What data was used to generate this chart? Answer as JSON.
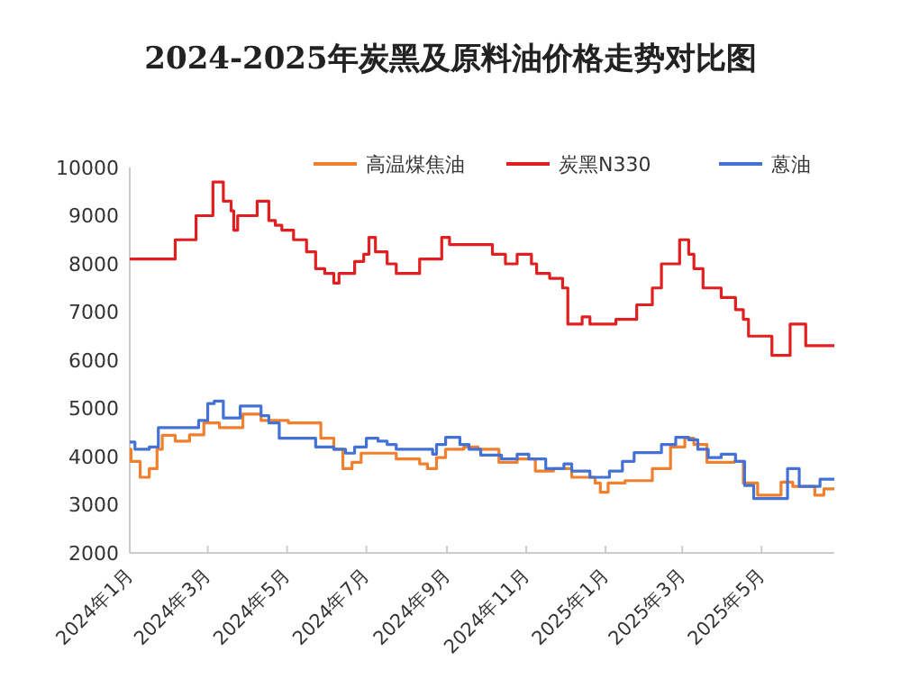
{
  "chart_data": {
    "type": "step",
    "title": "2024-2025年炭黑及原料油价格走势对比图",
    "legend": "top right",
    "xlim": [
      "2024-01-01",
      "2025-06-26"
    ],
    "xticks": [
      {
        "value": "2024-01-01",
        "label": "2024年1月"
      },
      {
        "value": "2024-03-01",
        "label": "2024年3月"
      },
      {
        "value": "2024-05-01",
        "label": "2024年5月"
      },
      {
        "value": "2024-07-01",
        "label": "2024年7月"
      },
      {
        "value": "2024-09-01",
        "label": "2024年9月"
      },
      {
        "value": "2024-11-01",
        "label": "2024年11月"
      },
      {
        "value": "2025-01-01",
        "label": "2025年1月"
      },
      {
        "value": "2025-03-01",
        "label": "2025年3月"
      },
      {
        "value": "2025-05-01",
        "label": "2025年5月"
      }
    ],
    "ylim": [
      2000,
      10000
    ],
    "yticks": [
      2000,
      3000,
      4000,
      5000,
      6000,
      7000,
      8000,
      9000,
      10000
    ],
    "series": [
      {
        "name": "高温煤焦油",
        "color": "#f07f2e",
        "x": [
          "2024-01-01",
          "2024-01-02",
          "2024-01-09",
          "2024-01-16",
          "2024-01-22",
          "2024-01-26",
          "2024-02-05",
          "2024-02-16",
          "2024-02-27",
          "2024-03-10",
          "2024-03-28",
          "2024-04-11",
          "2024-05-02",
          "2024-05-27",
          "2024-06-06",
          "2024-06-13",
          "2024-06-20",
          "2024-06-27",
          "2024-07-24",
          "2024-08-11",
          "2024-08-17",
          "2024-08-24",
          "2024-08-31",
          "2024-09-14",
          "2024-09-25",
          "2024-10-11",
          "2024-10-25",
          "2024-11-08",
          "2024-11-22",
          "2024-12-06",
          "2024-12-24",
          "2024-12-28",
          "2025-01-03",
          "2025-01-16",
          "2025-02-06",
          "2025-02-20",
          "2025-03-03",
          "2025-03-10",
          "2025-03-20",
          "2025-04-10",
          "2025-04-17",
          "2025-04-28",
          "2025-05-16",
          "2025-05-25",
          "2025-06-11",
          "2025-06-18",
          "2025-06-26"
        ],
        "values": [
          4150,
          3900,
          3570,
          3750,
          4150,
          4440,
          4320,
          4450,
          4700,
          4600,
          4880,
          4750,
          4700,
          4380,
          4150,
          3750,
          3880,
          4070,
          3950,
          3850,
          3750,
          3980,
          4150,
          4200,
          4150,
          3880,
          3950,
          3700,
          3750,
          3570,
          3450,
          3260,
          3450,
          3500,
          3750,
          4200,
          4380,
          4250,
          3880,
          3900,
          3450,
          3200,
          3470,
          3380,
          3200,
          3330,
          3330
        ]
      },
      {
        "name": "炭黑N330",
        "color": "#e02020",
        "x": [
          "2024-01-01",
          "2024-02-05",
          "2024-02-21",
          "2024-03-05",
          "2024-03-13",
          "2024-03-19",
          "2024-03-21",
          "2024-03-24",
          "2024-04-08",
          "2024-04-17",
          "2024-04-22",
          "2024-04-27",
          "2024-05-06",
          "2024-05-16",
          "2024-05-23",
          "2024-05-30",
          "2024-06-06",
          "2024-06-10",
          "2024-06-22",
          "2024-06-29",
          "2024-07-03",
          "2024-07-08",
          "2024-07-17",
          "2024-07-24",
          "2024-08-11",
          "2024-08-28",
          "2024-09-03",
          "2024-10-06",
          "2024-10-16",
          "2024-10-25",
          "2024-11-05",
          "2024-11-09",
          "2024-11-19",
          "2024-11-29",
          "2024-12-03",
          "2024-12-14",
          "2024-12-20",
          "2025-01-09",
          "2025-01-25",
          "2025-02-06",
          "2025-02-13",
          "2025-02-27",
          "2025-03-06",
          "2025-03-10",
          "2025-03-17",
          "2025-03-31",
          "2025-04-11",
          "2025-04-17",
          "2025-04-21",
          "2025-05-09",
          "2025-05-23",
          "2025-06-04",
          "2025-06-26"
        ],
        "values": [
          8100,
          8500,
          9000,
          9700,
          9300,
          9100,
          8700,
          9000,
          9300,
          8900,
          8800,
          8700,
          8500,
          8250,
          7900,
          7800,
          7600,
          7800,
          8050,
          8200,
          8550,
          8250,
          8000,
          7800,
          8100,
          8550,
          8400,
          8200,
          8000,
          8200,
          8000,
          7800,
          7700,
          7500,
          6750,
          6900,
          6750,
          6850,
          7150,
          7500,
          8000,
          8500,
          8200,
          7900,
          7500,
          7300,
          7050,
          6850,
          6500,
          6100,
          6750,
          6300,
          6300
        ]
      },
      {
        "name": "蒽油",
        "color": "#4472d4",
        "x": [
          "2024-01-01",
          "2024-01-05",
          "2024-01-16",
          "2024-01-23",
          "2024-02-23",
          "2024-03-01",
          "2024-03-06",
          "2024-03-13",
          "2024-03-26",
          "2024-04-11",
          "2024-04-17",
          "2024-04-25",
          "2024-05-23",
          "2024-06-06",
          "2024-06-15",
          "2024-06-22",
          "2024-07-01",
          "2024-07-10",
          "2024-07-17",
          "2024-07-24",
          "2024-08-21",
          "2024-08-24",
          "2024-08-31",
          "2024-09-11",
          "2024-09-18",
          "2024-09-27",
          "2024-10-13",
          "2024-10-25",
          "2024-11-03",
          "2024-11-16",
          "2024-11-30",
          "2024-12-06",
          "2024-12-20",
          "2025-01-04",
          "2025-01-14",
          "2025-01-23",
          "2025-02-13",
          "2025-02-24",
          "2025-03-06",
          "2025-03-13",
          "2025-03-21",
          "2025-03-31",
          "2025-04-11",
          "2025-04-18",
          "2025-04-25",
          "2025-05-21",
          "2025-05-30",
          "2025-06-15",
          "2025-06-26"
        ],
        "values": [
          4300,
          4150,
          4200,
          4600,
          4750,
          5100,
          5150,
          4800,
          5050,
          4850,
          4700,
          4380,
          4200,
          4150,
          4070,
          4200,
          4380,
          4320,
          4250,
          4150,
          4050,
          4250,
          4400,
          4250,
          4150,
          4030,
          3950,
          4050,
          3950,
          3750,
          3850,
          3700,
          3570,
          3700,
          3900,
          4080,
          4250,
          4400,
          4350,
          4150,
          3980,
          4050,
          3900,
          3400,
          3130,
          3750,
          3380,
          3530,
          3530
        ]
      }
    ]
  }
}
